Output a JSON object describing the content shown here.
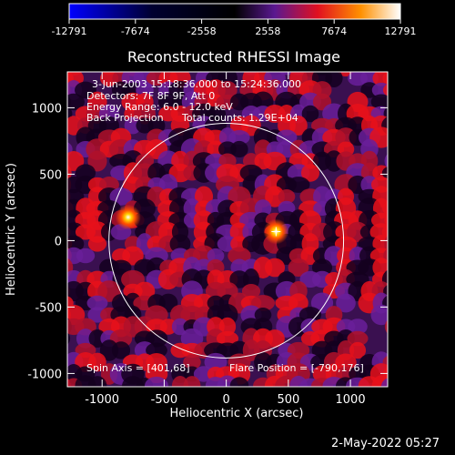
{
  "window": {
    "title": "Reconstructed RHESSI Image",
    "timestamp": "2-May-2022 05:27"
  },
  "colorbar": {
    "ticks": [
      "-12791",
      "-7674",
      "-2558",
      "2558",
      "7674",
      "12791"
    ],
    "min": -12791,
    "max": 12791
  },
  "image_info": {
    "time": "3-Jun-2003 15:18:36.000 to 15:24:36.000",
    "detectors": "Detectors: 7F 8F 9F, Att 0",
    "energy": "Energy Range: 6.0 - 12.0 keV",
    "method": "Back Projection",
    "counts": "Total counts: 1.29E+04",
    "spin_axis": "Spin Axis = [401,68]",
    "flare_position": "Flare Position = [-790,176]"
  },
  "chart_data": {
    "type": "heatmap",
    "title": "Reconstructed RHESSI Image",
    "xlabel": "Heliocentric X (arcsec)",
    "ylabel": "Heliocentric Y (arcsec)",
    "xlim": [
      -1280,
      1300
    ],
    "ylim": [
      -1100,
      1270
    ],
    "xticks": [
      "-1000",
      "-500",
      "0",
      "500",
      "1000"
    ],
    "xtick_values": [
      -1000,
      -500,
      0,
      500,
      1000
    ],
    "yticks": [
      "-1000",
      "-500",
      "0",
      "500",
      "1000"
    ],
    "ytick_values": [
      -1000,
      -500,
      0,
      500,
      1000
    ],
    "colors": {
      "background": "#000000",
      "text": "#ffffff",
      "limb": "#ffffff"
    },
    "solar_limb": {
      "center": [
        0,
        0
      ],
      "radius_arcsec": 945
    },
    "sources": [
      {
        "x": -790,
        "y": 176,
        "peak": 12791
      },
      {
        "x": 401,
        "y": 68,
        "peak": 12791
      }
    ],
    "marker": {
      "x": 401,
      "y": 68
    }
  }
}
